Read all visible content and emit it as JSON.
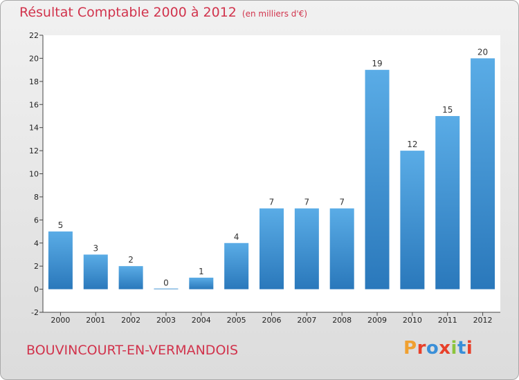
{
  "header": {
    "title": "Résultat Comptable 2000 à 2012",
    "subtitle": "(en milliers d'€)"
  },
  "footer": {
    "commune": "BOUVINCOURT-EN-VERMANDOIS",
    "brand": "Proxiti"
  },
  "colors": {
    "title": "#d1334c",
    "bar_light": "#5aace6",
    "bar_dark": "#2f7fc1",
    "brand_letters": [
      "#f0a030",
      "#e8402a",
      "#3a8fd8",
      "#e8402a",
      "#8cc43c",
      "#3a8fd8",
      "#e8402a"
    ]
  },
  "chart_data": {
    "type": "bar",
    "title": "Résultat Comptable 2000 à 2012",
    "subtitle": "(en milliers d'€)",
    "categories": [
      "2000",
      "2001",
      "2002",
      "2003",
      "2004",
      "2005",
      "2006",
      "2007",
      "2008",
      "2009",
      "2010",
      "2011",
      "2012"
    ],
    "values": [
      5,
      3,
      2,
      0,
      1,
      4,
      7,
      7,
      7,
      19,
      12,
      15,
      20
    ],
    "data_labels": [
      "5",
      "3",
      "2",
      "0",
      "1",
      "4",
      "7",
      "7",
      "7",
      "19",
      "12",
      "15",
      "20"
    ],
    "ylim": [
      -2,
      22
    ],
    "yticks": [
      -2,
      0,
      2,
      4,
      6,
      8,
      10,
      12,
      14,
      16,
      18,
      20,
      22
    ],
    "grid": false,
    "legend": "none"
  }
}
